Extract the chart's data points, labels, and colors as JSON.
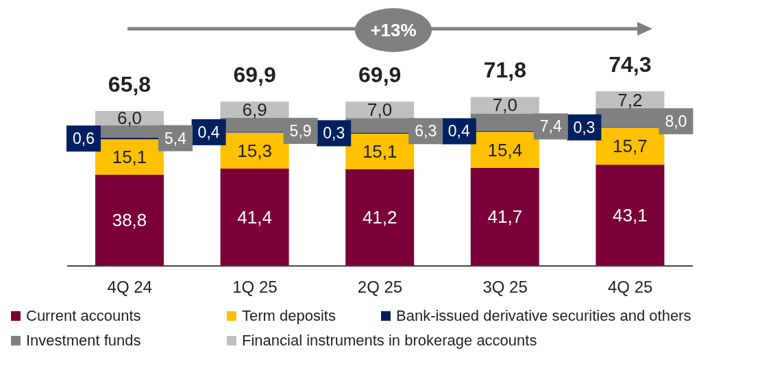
{
  "chart_data": {
    "type": "bar",
    "stacked": true,
    "categories": [
      "4Q 24",
      "1Q 25",
      "2Q 25",
      "3Q 25",
      "4Q 25"
    ],
    "series": [
      {
        "name": "Current accounts",
        "color": "#7b0038",
        "values": [
          38.8,
          41.4,
          41.2,
          41.7,
          43.1
        ],
        "value_labels": [
          "38,8",
          "41,4",
          "41,2",
          "41,7",
          "43,1"
        ]
      },
      {
        "name": "Term deposits",
        "color": "#ffc000",
        "values": [
          15.1,
          15.3,
          15.1,
          15.4,
          15.7
        ],
        "value_labels": [
          "15,1",
          "15,3",
          "15,1",
          "15,4",
          "15,7"
        ]
      },
      {
        "name": "Bank-issued derivative securities and others",
        "color": "#002060",
        "values": [
          0.6,
          0.4,
          0.3,
          0.4,
          0.3
        ],
        "value_labels": [
          "0,6",
          "0,4",
          "0,3",
          "0,4",
          "0,3"
        ]
      },
      {
        "name": "Investment funds",
        "color": "#808080",
        "values": [
          5.4,
          5.9,
          6.3,
          7.4,
          8.0
        ],
        "value_labels": [
          "5,4",
          "5,9",
          "6,3",
          "7,4",
          "8,0"
        ]
      },
      {
        "name": "Financial instruments in brokerage accounts",
        "color": "#bfbfbf",
        "values": [
          6.0,
          6.9,
          7.0,
          7.0,
          7.2
        ],
        "value_labels": [
          "6,0",
          "6,9",
          "7,0",
          "7,0",
          "7,2"
        ]
      }
    ],
    "totals": [
      "65,8",
      "69,9",
      "69,9",
      "71,8",
      "74,3"
    ],
    "annotations": [
      "+13%"
    ],
    "legend": "bottom",
    "grid": false
  }
}
